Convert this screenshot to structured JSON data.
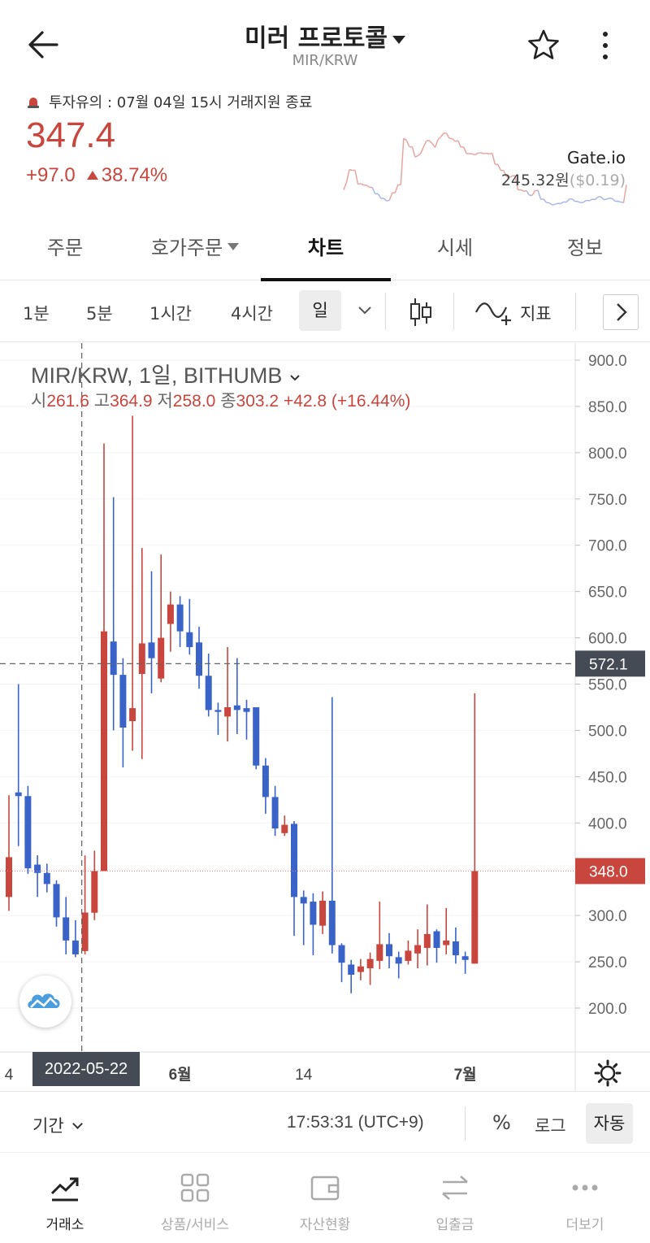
{
  "header": {
    "title": "미러 프로토콜",
    "pair": "MIR/KRW"
  },
  "price_info": {
    "warning": "투자유의 : 07월 04일 15시 거래지원 종료",
    "price": "347.4",
    "change": "+97.0",
    "change_pct": "38.74%",
    "exchange_name": "Gate.io",
    "exchange_price": "245.32원",
    "exchange_usd": "($0.19)",
    "colors": {
      "up": "#c8463d",
      "down": "#3a63c9"
    }
  },
  "tabs": [
    {
      "label": "주문"
    },
    {
      "label": "호가주문"
    },
    {
      "label": "차트",
      "active": true
    },
    {
      "label": "시세"
    },
    {
      "label": "정보"
    }
  ],
  "intervals": [
    "1분",
    "5분",
    "1시간",
    "4시간"
  ],
  "selected_interval": "일",
  "indicator_label": "지표",
  "chart": {
    "title": "MIR/KRW, 1일, BITHUMB",
    "open_label": "시",
    "open": "261.6",
    "high_label": "고",
    "high": "364.9",
    "low_label": "저",
    "low": "258.0",
    "close_label": "종",
    "close": "303.2",
    "change": "+42.8 (+16.44%)",
    "crosshair_price": "572.1",
    "last_price_tag": "348.0",
    "crosshair_date": "2022-05-22"
  },
  "chart_data": {
    "type": "candlestick",
    "y_ticks": [
      900,
      850,
      800,
      750,
      700,
      650,
      600,
      550,
      500,
      450,
      400,
      350,
      300,
      250,
      200
    ],
    "x_labels": [
      "4",
      "6월",
      "14",
      "7월"
    ],
    "ylim": [
      155,
      920
    ],
    "candles": [
      [
        320,
        430,
        305,
        363
      ],
      [
        433,
        550,
        375,
        429
      ],
      [
        429,
        440,
        345,
        351
      ],
      [
        355,
        365,
        320,
        346
      ],
      [
        346,
        356,
        325,
        334
      ],
      [
        334,
        338,
        288,
        298
      ],
      [
        298,
        320,
        258,
        273
      ],
      [
        273,
        295,
        255,
        258
      ],
      [
        261.6,
        364.9,
        258.0,
        303.2
      ],
      [
        303,
        370,
        295,
        348
      ],
      [
        348,
        810,
        348,
        607
      ],
      [
        596,
        752,
        500,
        560
      ],
      [
        560,
        578,
        460,
        503
      ],
      [
        510,
        840,
        478,
        524
      ],
      [
        561,
        697,
        469,
        594
      ],
      [
        595,
        672,
        540,
        578
      ],
      [
        556,
        690,
        552,
        600
      ],
      [
        615,
        650,
        585,
        636
      ],
      [
        636,
        645,
        590,
        607
      ],
      [
        606,
        642,
        582,
        590
      ],
      [
        595,
        612,
        545,
        559
      ],
      [
        559,
        583,
        515,
        522
      ],
      [
        522,
        530,
        495,
        520
      ],
      [
        515,
        590,
        488,
        525
      ],
      [
        527,
        578,
        496,
        522
      ],
      [
        524,
        533,
        490,
        520
      ],
      [
        525,
        525,
        458,
        462
      ],
      [
        462,
        470,
        410,
        428
      ],
      [
        428,
        440,
        386,
        394
      ],
      [
        389,
        408,
        386,
        398
      ],
      [
        399,
        402,
        278,
        320
      ],
      [
        320,
        327,
        268,
        313
      ],
      [
        315,
        324,
        257,
        290
      ],
      [
        289,
        326,
        280,
        316
      ],
      [
        316,
        536,
        259,
        268
      ],
      [
        268,
        270,
        228,
        249
      ],
      [
        247,
        252,
        216,
        236
      ],
      [
        239,
        253,
        230,
        245
      ],
      [
        243,
        260,
        225,
        253
      ],
      [
        251,
        315,
        242,
        269
      ],
      [
        269,
        281,
        243,
        256
      ],
      [
        255,
        261,
        232,
        248
      ],
      [
        251,
        273,
        247,
        262
      ],
      [
        259,
        285,
        243,
        268
      ],
      [
        265,
        312,
        246,
        280
      ],
      [
        283,
        285,
        249,
        265
      ],
      [
        268,
        308,
        258,
        273
      ],
      [
        272,
        287,
        248,
        257
      ],
      [
        256,
        261,
        237,
        252
      ],
      [
        248,
        540,
        248,
        348
      ]
    ],
    "crosshair": {
      "price": 572.1,
      "index": 8
    },
    "last": 348.0
  },
  "bottom_controls": {
    "period_label": "기간",
    "time": "17:53:31 (UTC+9)",
    "pct_label": "%",
    "log_label": "로그",
    "auto_label": "자동"
  },
  "bottom_nav": [
    {
      "label": "거래소",
      "icon": "trend-icon",
      "active": true
    },
    {
      "label": "상품/서비스",
      "icon": "grid-icon"
    },
    {
      "label": "자산현황",
      "icon": "wallet-icon"
    },
    {
      "label": "입출금",
      "icon": "transfer-icon"
    },
    {
      "label": "더보기",
      "icon": "more-dots-icon"
    }
  ]
}
